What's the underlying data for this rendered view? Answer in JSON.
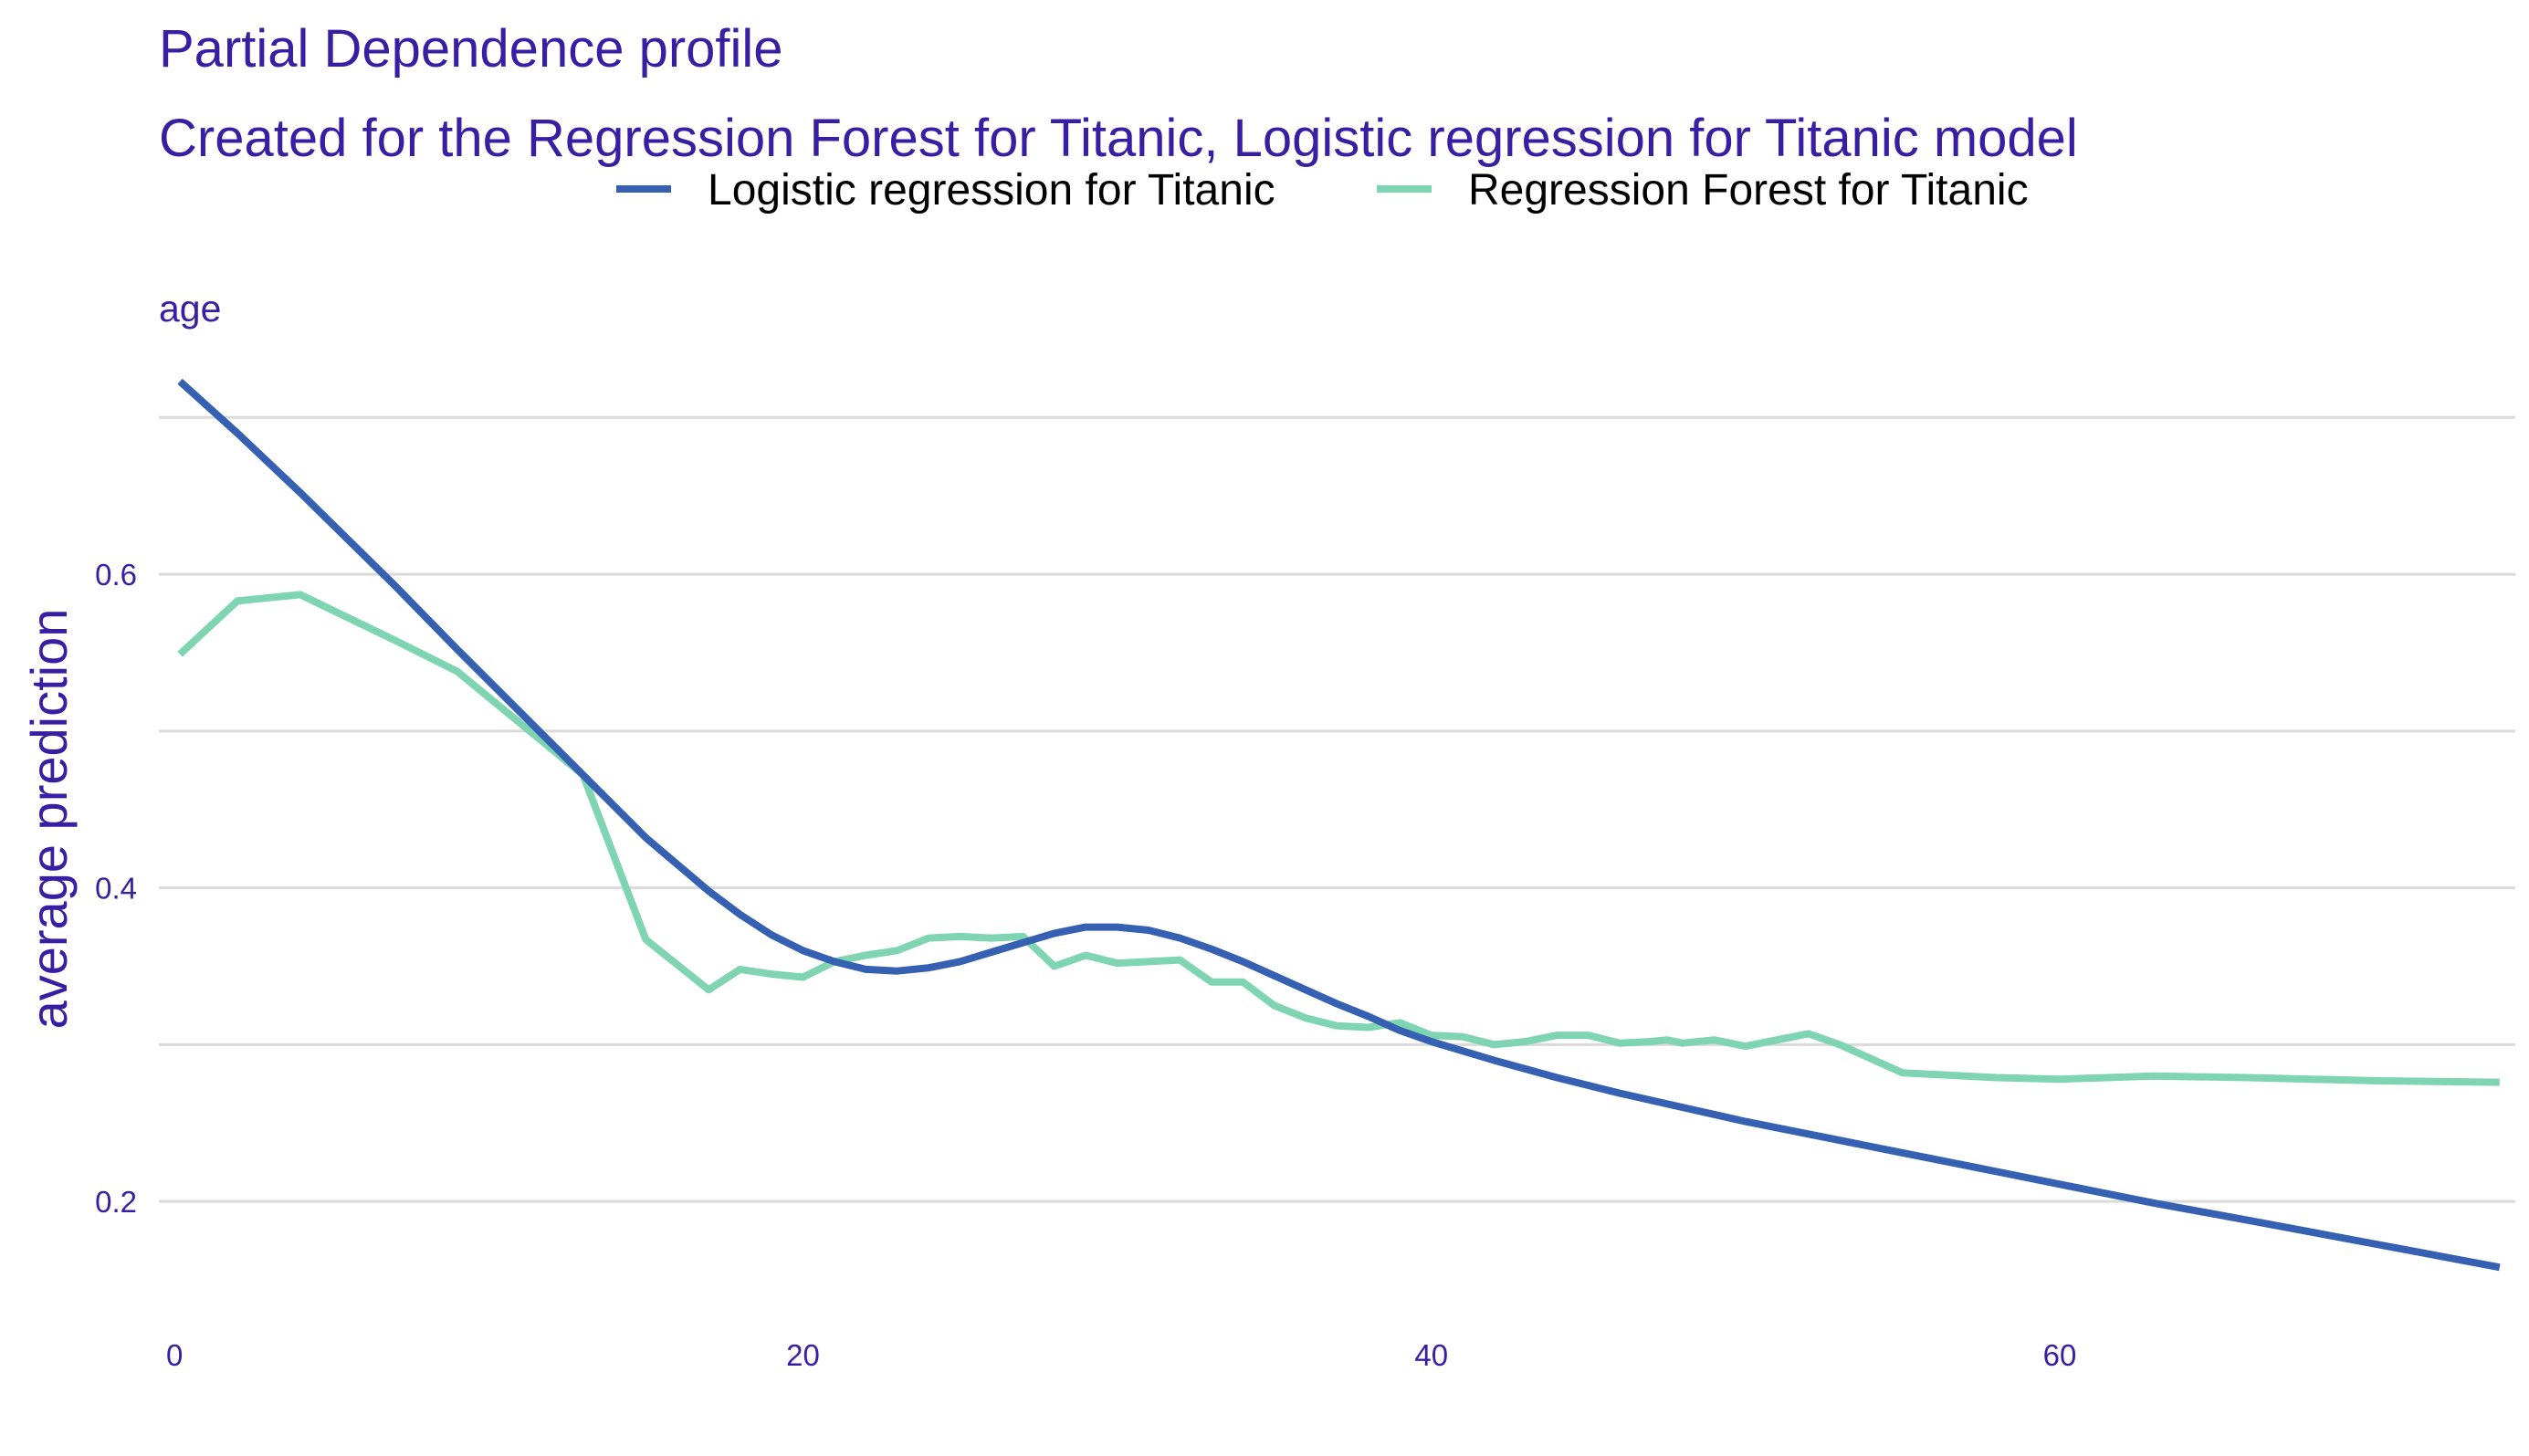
{
  "colors": {
    "text": "#371ea3",
    "legend_text": "#000000",
    "grid": "#dadadc",
    "series": [
      "#3661b3",
      "#7fd4b2"
    ]
  },
  "chart_data": {
    "type": "line",
    "title": "Partial Dependence profile",
    "subtitle": "Created for the Regression Forest for Titanic, Logistic regression for Titanic model",
    "panel_label": "age",
    "xlabel": "",
    "ylabel": "average prediction",
    "xlim": [
      -0.5,
      74.5
    ],
    "ylim": [
      0.125,
      0.745
    ],
    "x_ticks": [
      0,
      20,
      40,
      60
    ],
    "y_ticks": [
      0.2,
      0.4,
      0.6
    ],
    "y_tick_labels": [
      "0.2",
      "0.4",
      "0.6"
    ],
    "y_grid": [
      0.2,
      0.3,
      0.4,
      0.5,
      0.6,
      0.7
    ],
    "grid": true,
    "legend_position": "top",
    "series": [
      {
        "name": "Logistic regression for Titanic",
        "x": [
          0.17,
          2,
          4,
          7,
          9,
          11,
          13,
          15,
          17,
          18,
          19,
          20,
          21,
          22,
          23,
          24,
          25,
          26,
          27,
          28,
          29,
          30,
          31,
          32,
          33,
          34,
          35,
          36,
          37,
          38,
          39,
          40,
          42,
          44,
          46,
          48,
          50,
          52,
          55,
          58,
          60,
          63,
          66,
          70,
          74
        ],
        "y": [
          0.723,
          0.69,
          0.652,
          0.593,
          0.552,
          0.512,
          0.472,
          0.432,
          0.398,
          0.383,
          0.37,
          0.36,
          0.353,
          0.348,
          0.347,
          0.349,
          0.353,
          0.359,
          0.365,
          0.371,
          0.375,
          0.375,
          0.373,
          0.368,
          0.361,
          0.353,
          0.344,
          0.335,
          0.326,
          0.318,
          0.309,
          0.302,
          0.29,
          0.279,
          0.269,
          0.26,
          0.251,
          0.243,
          0.231,
          0.219,
          0.211,
          0.199,
          0.188,
          0.173,
          0.158
        ]
      },
      {
        "name": "Regression Forest for Titanic",
        "x": [
          0.17,
          2,
          4,
          7,
          9,
          11,
          13,
          15,
          17,
          18,
          19,
          20,
          21,
          22,
          23,
          24,
          25,
          26,
          27,
          28,
          29,
          30,
          31,
          32,
          33,
          34,
          35,
          36,
          37,
          38,
          39,
          40,
          41,
          42,
          43,
          44,
          45,
          46,
          47,
          47.5,
          48,
          49,
          50,
          51,
          52,
          53,
          55,
          58,
          60,
          63,
          66,
          70,
          74
        ],
        "y": [
          0.549,
          0.583,
          0.587,
          0.558,
          0.538,
          0.505,
          0.472,
          0.367,
          0.335,
          0.348,
          0.345,
          0.343,
          0.353,
          0.357,
          0.36,
          0.368,
          0.369,
          0.368,
          0.369,
          0.35,
          0.357,
          0.352,
          0.353,
          0.354,
          0.34,
          0.34,
          0.325,
          0.317,
          0.312,
          0.311,
          0.314,
          0.306,
          0.305,
          0.3,
          0.302,
          0.306,
          0.306,
          0.301,
          0.302,
          0.303,
          0.301,
          0.303,
          0.299,
          0.303,
          0.307,
          0.3,
          0.282,
          0.279,
          0.278,
          0.28,
          0.279,
          0.277,
          0.276
        ]
      }
    ]
  }
}
